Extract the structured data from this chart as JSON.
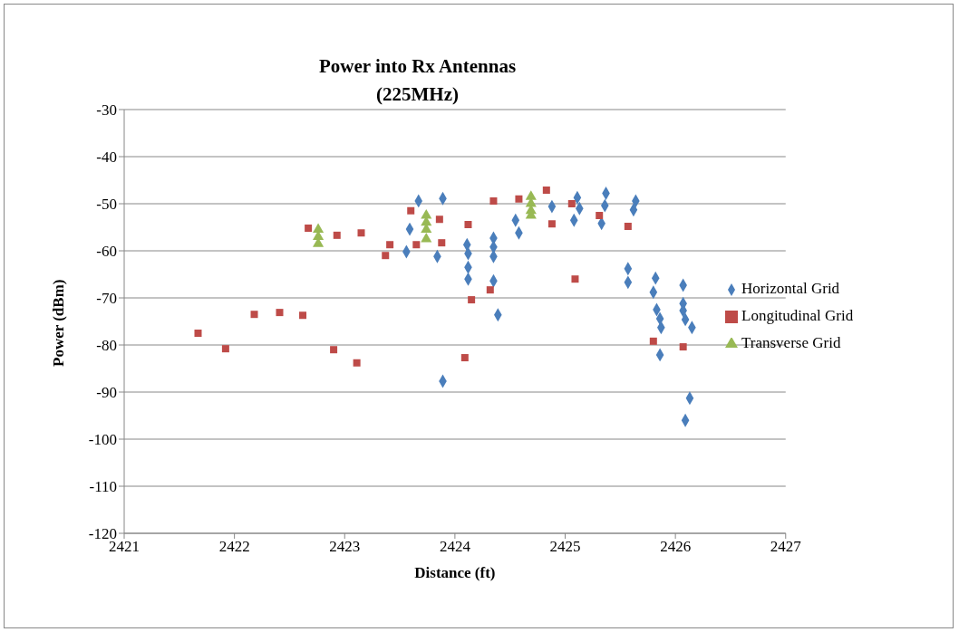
{
  "chart_data": {
    "type": "scatter",
    "title": "Power into Rx Antennas",
    "subtitle": "(225MHz)",
    "xlabel": "Distance (ft)",
    "ylabel": "Power (dBm)",
    "xlim": [
      2421,
      2427
    ],
    "xticks": [
      2421,
      2422,
      2423,
      2424,
      2425,
      2426,
      2427
    ],
    "ylim": [
      -120,
      -30
    ],
    "yticks": [
      -120,
      -110,
      -100,
      -90,
      -80,
      -70,
      -60,
      -50,
      -40,
      -30
    ],
    "grid": "y",
    "legend": "right",
    "series": [
      {
        "name": "Horizontal Grid",
        "color": "#4a7ebb",
        "marker": "diamond",
        "x": [
          2423.59,
          2423.56,
          2423.67,
          2423.89,
          2423.84,
          2423.89,
          2424.11,
          2424.12,
          2424.12,
          2424.12,
          2424.35,
          2424.35,
          2424.35,
          2424.35,
          2424.39,
          2424.55,
          2424.58,
          2424.88,
          2425.08,
          2425.11,
          2425.13,
          2425.37,
          2425.36,
          2425.33,
          2425.64,
          2425.62,
          2425.57,
          2425.57,
          2425.82,
          2425.8,
          2425.83,
          2425.86,
          2425.87,
          2425.86,
          2426.07,
          2426.07,
          2426.07,
          2426.09,
          2426.15,
          2426.13,
          2426.09
        ],
        "values": [
          -55.4,
          -60.2,
          -49.4,
          -48.9,
          -61.2,
          -87.7,
          -58.7,
          -60.6,
          -63.5,
          -66.0,
          -57.3,
          -59.2,
          -61.2,
          -66.4,
          -73.6,
          -53.5,
          -56.2,
          -50.6,
          -53.5,
          -48.7,
          -51.0,
          -47.8,
          -50.4,
          -54.2,
          -49.4,
          -51.3,
          -63.8,
          -66.7,
          -65.8,
          -68.8,
          -72.5,
          -74.4,
          -76.3,
          -82.1,
          -67.3,
          -71.2,
          -72.7,
          -74.6,
          -76.3,
          -91.3,
          -96.0
        ]
      },
      {
        "name": "Longitudinal Grid",
        "color": "#be4b48",
        "marker": "square",
        "x": [
          2421.67,
          2421.92,
          2422.18,
          2422.41,
          2422.62,
          2422.67,
          2422.9,
          2422.93,
          2423.11,
          2423.15,
          2423.37,
          2423.41,
          2423.6,
          2423.65,
          2423.86,
          2423.88,
          2424.09,
          2424.12,
          2424.15,
          2424.32,
          2424.35,
          2424.58,
          2424.83,
          2424.88,
          2425.06,
          2425.09,
          2425.31,
          2425.57,
          2425.8,
          2426.07
        ],
        "values": [
          -77.5,
          -80.8,
          -73.5,
          -73.1,
          -73.7,
          -55.2,
          -81.0,
          -56.7,
          -83.8,
          -56.2,
          -61.0,
          -58.7,
          -51.5,
          -58.7,
          -53.3,
          -58.3,
          -82.7,
          -54.4,
          -70.4,
          -68.3,
          -49.4,
          -49.0,
          -47.1,
          -54.3,
          -50.0,
          -66.0,
          -52.5,
          -54.8,
          -79.2,
          -80.4
        ]
      },
      {
        "name": "Transverse Grid",
        "color": "#98b954",
        "marker": "triangle",
        "x": [
          2422.76,
          2422.76,
          2422.76,
          2423.74,
          2423.74,
          2423.74,
          2423.74,
          2424.69,
          2424.69,
          2424.69,
          2424.69
        ],
        "values": [
          -55.5,
          -57.0,
          -58.5,
          -52.5,
          -54.0,
          -55.5,
          -57.5,
          -48.5,
          -50.0,
          -51.5,
          -52.5
        ]
      }
    ]
  }
}
